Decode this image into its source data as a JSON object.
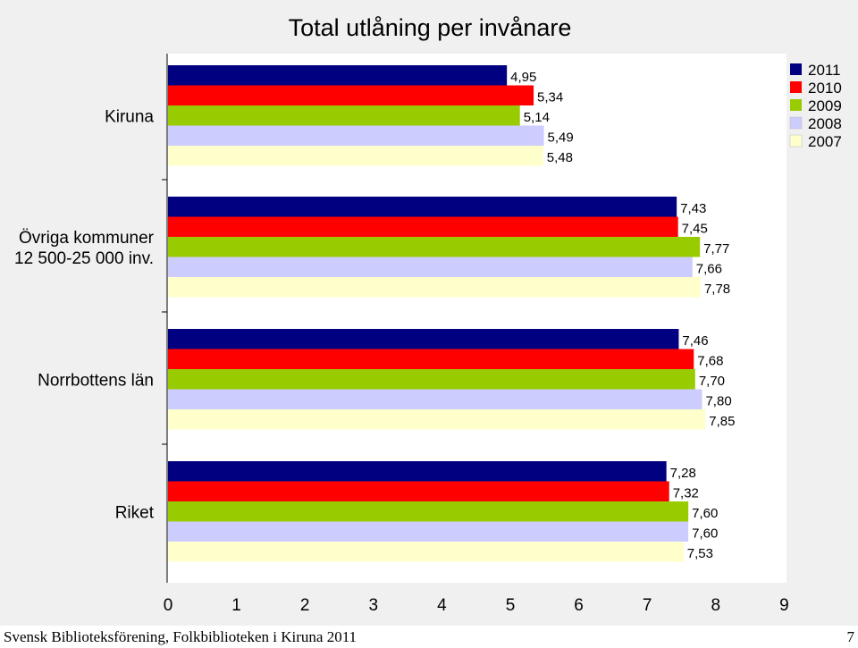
{
  "footer": {
    "text": "Svensk Biblioteksförening, Folkbiblioteken i Kiruna 2011",
    "page_number": "7"
  },
  "chart_data": {
    "type": "bar",
    "orientation": "horizontal",
    "title": "Total utlåning per invånare",
    "categories": [
      "Kiruna",
      "Övriga kommuner\n12 500-25 000 inv.",
      "Norrbottens län",
      "Riket"
    ],
    "series": [
      {
        "name": "2011",
        "color": "#000080",
        "values": [
          4.95,
          7.43,
          7.46,
          7.28
        ],
        "labels": [
          "4,95",
          "7,43",
          "7,46",
          "7,28"
        ]
      },
      {
        "name": "2010",
        "color": "#ff0000",
        "values": [
          5.34,
          7.45,
          7.68,
          7.32
        ],
        "labels": [
          "5,34",
          "7,45",
          "7,68",
          "7,32"
        ]
      },
      {
        "name": "2009",
        "color": "#99cc00",
        "values": [
          5.14,
          7.77,
          7.7,
          7.6
        ],
        "labels": [
          "5,14",
          "7,77",
          "7,70",
          "7,60"
        ]
      },
      {
        "name": "2008",
        "color": "#ccccff",
        "values": [
          5.49,
          7.66,
          7.8,
          7.6
        ],
        "labels": [
          "5,49",
          "7,66",
          "7,80",
          "7,60"
        ]
      },
      {
        "name": "2007",
        "color": "#ffffcc",
        "values": [
          5.48,
          7.78,
          7.85,
          7.53
        ],
        "labels": [
          "5,48",
          "7,78",
          "7,85",
          "7,53"
        ]
      }
    ],
    "xlim": [
      0,
      9
    ],
    "xticks": [
      "0",
      "1",
      "2",
      "3",
      "4",
      "5",
      "6",
      "7",
      "8",
      "9"
    ],
    "grid": false,
    "legend_position": "top-right"
  }
}
